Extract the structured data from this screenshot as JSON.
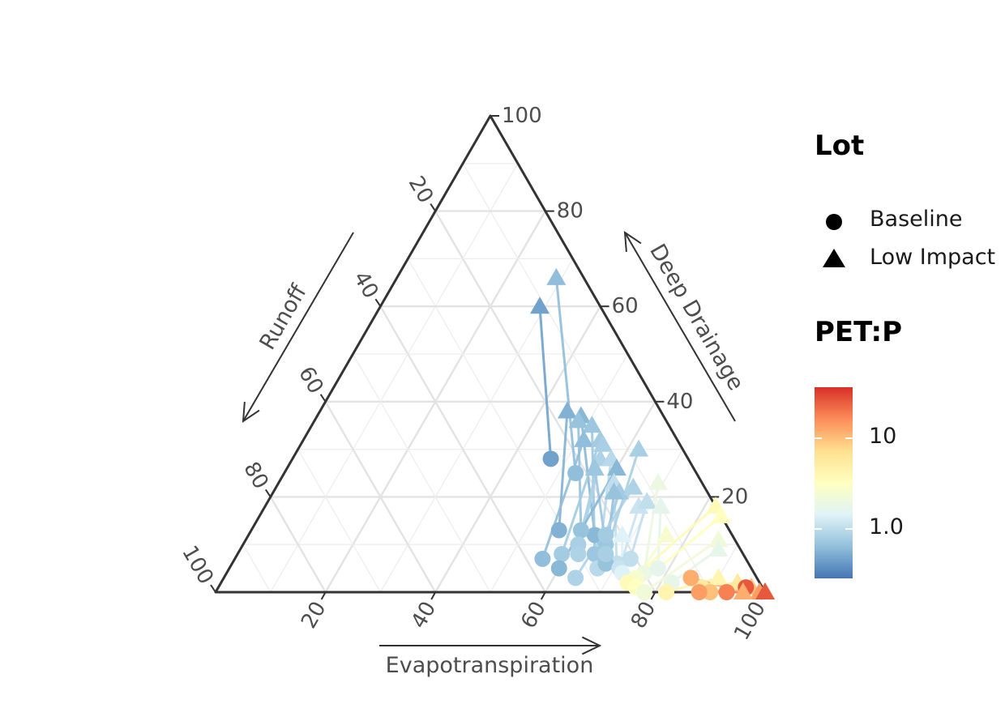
{
  "chart_data": {
    "type": "scatter",
    "subtype": "ternary",
    "axes": {
      "bottom": {
        "label": "Evapotranspiration",
        "ticks": [
          "20",
          "40",
          "60",
          "80",
          "100"
        ]
      },
      "right": {
        "label": "Deep Drainage",
        "ticks": [
          "20",
          "40",
          "60",
          "80",
          "100"
        ]
      },
      "left": {
        "label": "Runoff",
        "ticks": [
          "20",
          "40",
          "60",
          "80",
          "100"
        ]
      }
    },
    "grid": true,
    "legend": {
      "position": "right",
      "shape_title": "Lot",
      "shapes": [
        {
          "label": "Baseline",
          "shape": "circle"
        },
        {
          "label": "Low Impact",
          "shape": "triangle"
        }
      ],
      "color_title": "PET:P",
      "color_ticks": [
        "10",
        "1.0"
      ],
      "colors": [
        "#4575b4",
        "#91bfdb",
        "#e0f3f8",
        "#ffffbf",
        "#fee090",
        "#fc8d59",
        "#d73027"
      ]
    },
    "pairs": [
      {
        "pet": 0.55,
        "baseline": {
          "et": 47,
          "dd": 28,
          "ro": 25
        },
        "lowimpact": {
          "et": 29,
          "dd": 60,
          "ro": 11
        }
      },
      {
        "pet": 0.75,
        "baseline": {
          "et": 53,
          "dd": 25,
          "ro": 22
        },
        "lowimpact": {
          "et": 29,
          "dd": 66,
          "ro": 5
        }
      },
      {
        "pet": 0.65,
        "baseline": {
          "et": 56,
          "dd": 13,
          "ro": 31
        },
        "lowimpact": {
          "et": 45,
          "dd": 38,
          "ro": 17
        }
      },
      {
        "pet": 0.7,
        "baseline": {
          "et": 63,
          "dd": 12,
          "ro": 25
        },
        "lowimpact": {
          "et": 48,
          "dd": 37,
          "ro": 15
        }
      },
      {
        "pet": 0.8,
        "baseline": {
          "et": 60,
          "dd": 13,
          "ro": 27
        },
        "lowimpact": {
          "et": 48,
          "dd": 36,
          "ro": 16
        }
      },
      {
        "pet": 0.85,
        "baseline": {
          "et": 65,
          "dd": 8,
          "ro": 27
        },
        "lowimpact": {
          "et": 51,
          "dd": 35,
          "ro": 14
        }
      },
      {
        "pet": 0.75,
        "baseline": {
          "et": 56,
          "dd": 7,
          "ro": 37
        },
        "lowimpact": {
          "et": 51,
          "dd": 32,
          "ro": 17
        }
      },
      {
        "pet": 0.9,
        "baseline": {
          "et": 59,
          "dd": 8,
          "ro": 33
        },
        "lowimpact": {
          "et": 54,
          "dd": 32,
          "ro": 14
        }
      },
      {
        "pet": 0.95,
        "baseline": {
          "et": 61,
          "dd": 10,
          "ro": 29
        },
        "lowimpact": {
          "et": 55,
          "dd": 31,
          "ro": 14
        }
      },
      {
        "pet": 1.0,
        "baseline": {
          "et": 62,
          "dd": 8,
          "ro": 30
        },
        "lowimpact": {
          "et": 56,
          "dd": 28,
          "ro": 16
        }
      },
      {
        "pet": 1.1,
        "baseline": {
          "et": 67,
          "dd": 5,
          "ro": 28
        },
        "lowimpact": {
          "et": 58,
          "dd": 28,
          "ro": 14
        }
      },
      {
        "pet": 0.85,
        "baseline": {
          "et": 66,
          "dd": 10,
          "ro": 24
        },
        "lowimpact": {
          "et": 56,
          "dd": 26,
          "ro": 18
        }
      },
      {
        "pet": 0.7,
        "baseline": {
          "et": 60,
          "dd": 5,
          "ro": 35
        },
        "lowimpact": {
          "et": 60,
          "dd": 26,
          "ro": 14
        }
      },
      {
        "pet": 1.2,
        "baseline": {
          "et": 70,
          "dd": 6,
          "ro": 24
        },
        "lowimpact": {
          "et": 61,
          "dd": 23,
          "ro": 16
        }
      },
      {
        "pet": 0.9,
        "baseline": {
          "et": 65,
          "dd": 12,
          "ro": 23
        },
        "lowimpact": {
          "et": 63,
          "dd": 21,
          "ro": 16
        }
      },
      {
        "pet": 0.8,
        "baseline": {
          "et": 68,
          "dd": 6,
          "ro": 26
        },
        "lowimpact": {
          "et": 62,
          "dd": 21,
          "ro": 17
        }
      },
      {
        "pet": 1.0,
        "baseline": {
          "et": 64,
          "dd": 3,
          "ro": 33
        },
        "lowimpact": {
          "et": 65,
          "dd": 22,
          "ro": 13
        }
      },
      {
        "pet": 1.3,
        "baseline": {
          "et": 71,
          "dd": 5,
          "ro": 24
        },
        "lowimpact": {
          "et": 68,
          "dd": 18,
          "ro": 14
        }
      },
      {
        "pet": 1.2,
        "baseline": {
          "et": 72,
          "dd": 7,
          "ro": 21
        },
        "lowimpact": {
          "et": 69,
          "dd": 19,
          "ro": 12
        }
      },
      {
        "pet": 0.95,
        "baseline": {
          "et": 67,
          "dd": 8,
          "ro": 25
        },
        "lowimpact": {
          "et": 62,
          "dd": 30,
          "ro": 8
        }
      },
      {
        "pet": 1.6,
        "baseline": {
          "et": 72,
          "dd": 4,
          "ro": 24
        },
        "lowimpact": {
          "et": 68,
          "dd": 12,
          "ro": 20
        }
      },
      {
        "pet": 2.2,
        "baseline": {
          "et": 76,
          "dd": 4,
          "ro": 20
        },
        "lowimpact": {
          "et": 69,
          "dd": 23,
          "ro": 8
        }
      },
      {
        "pet": 1.9,
        "baseline": {
          "et": 78,
          "dd": 5,
          "ro": 17
        },
        "lowimpact": {
          "et": 72,
          "dd": 18,
          "ro": 10
        }
      },
      {
        "pet": 2.8,
        "baseline": {
          "et": 75,
          "dd": 3,
          "ro": 22
        },
        "lowimpact": {
          "et": 76,
          "dd": 12,
          "ro": 12
        }
      },
      {
        "pet": 4.0,
        "baseline": {
          "et": 74,
          "dd": 2,
          "ro": 24
        },
        "lowimpact": {
          "et": 82,
          "dd": 18,
          "ro": 0
        }
      },
      {
        "pet": 3.5,
        "baseline": {
          "et": 76,
          "dd": 1,
          "ro": 23
        },
        "lowimpact": {
          "et": 84,
          "dd": 16,
          "ro": 0
        }
      },
      {
        "pet": 2.5,
        "baseline": {
          "et": 78,
          "dd": 0,
          "ro": 22
        },
        "lowimpact": {
          "et": 86,
          "dd": 11,
          "ro": 3
        }
      },
      {
        "pet": 2.0,
        "baseline": {
          "et": 82,
          "dd": 2,
          "ro": 16
        },
        "lowimpact": {
          "et": 87,
          "dd": 9,
          "ro": 4
        }
      },
      {
        "pet": 4.5,
        "baseline": {
          "et": 82,
          "dd": 0,
          "ro": 18
        },
        "lowimpact": {
          "et": 90,
          "dd": 3,
          "ro": 7
        }
      },
      {
        "pet": 6.0,
        "baseline": {
          "et": 88,
          "dd": 1,
          "ro": 11
        },
        "lowimpact": {
          "et": 94,
          "dd": 2,
          "ro": 4
        }
      },
      {
        "pet": 10.0,
        "baseline": {
          "et": 90,
          "dd": 0,
          "ro": 10
        },
        "lowimpact": {
          "et": 97,
          "dd": 1,
          "ro": 2
        }
      },
      {
        "pet": 14.0,
        "baseline": {
          "et": 88,
          "dd": 0,
          "ro": 12
        },
        "lowimpact": {
          "et": 99,
          "dd": 0,
          "ro": 1
        }
      },
      {
        "pet": 18.0,
        "baseline": {
          "et": 93,
          "dd": 0,
          "ro": 7
        },
        "lowimpact": {
          "et": 100,
          "dd": 0,
          "ro": 0
        }
      },
      {
        "pet": 25.0,
        "baseline": {
          "et": 96,
          "dd": 1,
          "ro": 3
        },
        "lowimpact": {
          "et": 100,
          "dd": 0,
          "ro": 0
        }
      },
      {
        "pet": 12.0,
        "baseline": {
          "et": 85,
          "dd": 3,
          "ro": 12
        },
        "lowimpact": {
          "et": 96,
          "dd": 0,
          "ro": 4
        }
      }
    ]
  }
}
